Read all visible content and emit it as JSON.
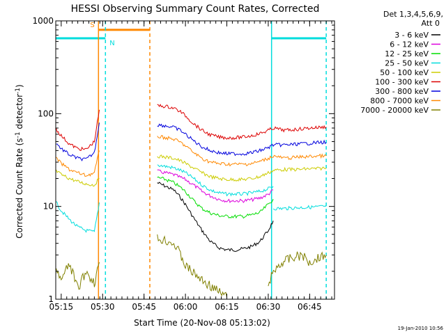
{
  "chart_data": {
    "type": "line",
    "title": "HESSI Observing Summary Count Rates, Corrected",
    "xlabel": "Start Time (20-Nov-08 05:13:02)",
    "ylabel_main": "Corrected Count Rate (s",
    "ylabel_sup1": "-1",
    "ylabel_mid": " detector",
    "ylabel_sup2": "-1",
    "ylabel_end": ")",
    "yscale": "log",
    "xlim": [
      5.217,
      6.9
    ],
    "ylim": [
      1,
      1000
    ],
    "xticks": [
      {
        "x": 5.25,
        "label": "05:15"
      },
      {
        "x": 5.5,
        "label": "05:30"
      },
      {
        "x": 5.75,
        "label": "05:45"
      },
      {
        "x": 6.0,
        "label": "06:00"
      },
      {
        "x": 6.25,
        "label": "06:15"
      },
      {
        "x": 6.5,
        "label": "06:30"
      },
      {
        "x": 6.75,
        "label": "06:45"
      }
    ],
    "yticks": [
      {
        "y": 1,
        "label": "1"
      },
      {
        "y": 10,
        "label": "10"
      },
      {
        "y": 100,
        "label": "100"
      },
      {
        "y": 1000,
        "label": "1000"
      }
    ],
    "legend_header": [
      "Det 1,3,4,5,6,9,",
      "Att 0"
    ],
    "legend_position": "right",
    "series": [
      {
        "name": "3 - 6 keV",
        "color": "#000000",
        "segments": [
          {
            "x": [
              5.83,
              5.88,
              5.93,
              5.97,
              6.0,
              6.05,
              6.1,
              6.15,
              6.2,
              6.25,
              6.3,
              6.35,
              6.4,
              6.45,
              6.5,
              6.53
            ],
            "y": [
              18,
              16.5,
              15,
              12.5,
              10.5,
              7.5,
              5.5,
              4.2,
              3.6,
              3.4,
              3.4,
              3.5,
              3.7,
              4.2,
              5.5,
              7
            ]
          }
        ]
      },
      {
        "name": "6 - 12 keV",
        "color": "#dd00dd",
        "segments": [
          {
            "x": [
              5.83,
              5.88,
              5.93,
              5.97,
              6.0,
              6.05,
              6.1,
              6.15,
              6.2,
              6.25,
              6.3,
              6.35,
              6.4,
              6.45,
              6.5,
              6.53
            ],
            "y": [
              24,
              23,
              22,
              20.5,
              19.5,
              17,
              14.5,
              13,
              12,
              11.5,
              11.5,
              11.5,
              11.8,
              12.3,
              13.5,
              15
            ]
          }
        ]
      },
      {
        "name": "12 - 25 keV",
        "color": "#00dd00",
        "segments": [
          {
            "x": [
              5.83,
              5.88,
              5.93,
              5.97,
              6.0,
              6.05,
              6.1,
              6.15,
              6.2,
              6.25,
              6.3,
              6.35,
              6.4,
              6.45,
              6.5,
              6.53
            ],
            "y": [
              20.5,
              19.5,
              18,
              16,
              14.5,
              11.5,
              9.5,
              8.5,
              8,
              7.8,
              7.8,
              7.8,
              8.1,
              8.6,
              10.5,
              12
            ]
          }
        ]
      },
      {
        "name": "25 - 50 keV",
        "color": "#00dddd",
        "segments": [
          {
            "x": [
              5.22,
              5.25,
              5.3,
              5.35,
              5.4,
              5.45,
              5.48
            ],
            "y": [
              11,
              9,
              7.2,
              6,
              5.5,
              5.3,
              11
            ]
          },
          {
            "x": [
              5.83,
              5.88,
              5.93,
              5.97,
              6.0,
              6.05,
              6.1,
              6.15,
              6.2,
              6.25,
              6.3,
              6.35,
              6.4,
              6.45,
              6.5,
              6.53
            ],
            "y": [
              28,
              27,
              26,
              24.5,
              23,
              20,
              17,
              15,
              14,
              13.6,
              13.6,
              13.6,
              14,
              14.5,
              15.5,
              16.5
            ]
          },
          {
            "x": [
              6.53,
              6.6,
              6.68,
              6.75,
              6.8,
              6.85
            ],
            "y": [
              9.5,
              9.5,
              9.7,
              9.8,
              9.9,
              10
            ]
          }
        ]
      },
      {
        "name": "50 - 100 keV",
        "color": "#cccc00",
        "segments": [
          {
            "x": [
              5.22,
              5.25,
              5.3,
              5.35,
              5.4,
              5.45,
              5.48
            ],
            "y": [
              24,
              22,
              20,
              18.5,
              17.5,
              17,
              20
            ]
          },
          {
            "x": [
              5.83,
              5.88,
              5.93,
              5.97,
              6.0,
              6.05,
              6.1,
              6.15,
              6.2,
              6.25,
              6.3,
              6.35,
              6.4,
              6.45,
              6.5,
              6.53
            ],
            "y": [
              35,
              34,
              33,
              31,
              29,
              26,
              23,
              21,
              20,
              19.5,
              19.5,
              19.5,
              20,
              21,
              23,
              24.5
            ]
          },
          {
            "x": [
              6.53,
              6.6,
              6.68,
              6.75,
              6.8,
              6.85
            ],
            "y": [
              24.5,
              25,
              25,
              25.5,
              25.5,
              26
            ]
          }
        ]
      },
      {
        "name": "100 - 300 keV",
        "color": "#dd0000",
        "segments": [
          {
            "x": [
              5.22,
              5.25,
              5.3,
              5.35,
              5.4,
              5.45,
              5.48
            ],
            "y": [
              68,
              58,
              47,
              42,
              41,
              50,
              110
            ]
          },
          {
            "x": [
              5.83,
              5.88,
              5.93,
              5.97,
              6.0,
              6.05,
              6.1,
              6.15,
              6.2,
              6.25,
              6.3,
              6.35,
              6.4,
              6.45,
              6.5,
              6.53,
              6.6,
              6.68,
              6.75,
              6.8,
              6.85
            ],
            "y": [
              122,
              120,
              115,
              105,
              95,
              78,
              66,
              59,
              56,
              55,
              55,
              56,
              58,
              61,
              66,
              70,
              66,
              68,
              70,
              71,
              72
            ]
          }
        ]
      },
      {
        "name": "300 - 800 keV",
        "color": "#0000dd",
        "segments": [
          {
            "x": [
              5.22,
              5.25,
              5.3,
              5.35,
              5.4,
              5.45,
              5.48
            ],
            "y": [
              48,
              42,
              36,
              33,
              32,
              38,
              80
            ]
          },
          {
            "x": [
              5.83,
              5.88,
              5.93,
              5.97,
              6.0,
              6.05,
              6.1,
              6.15,
              6.2,
              6.25,
              6.3,
              6.35,
              6.4,
              6.45,
              6.5,
              6.53,
              6.6,
              6.68,
              6.75,
              6.8,
              6.85
            ],
            "y": [
              76,
              74,
              71,
              66,
              60,
              51,
              44,
              40,
              38,
              37,
              37,
              37,
              38,
              40,
              43,
              46,
              46,
              47,
              48,
              49,
              49
            ]
          }
        ]
      },
      {
        "name": "800 - 7000 keV",
        "color": "#ff8800",
        "segments": [
          {
            "x": [
              5.22,
              5.25,
              5.3,
              5.35,
              5.4,
              5.45,
              5.48
            ],
            "y": [
              33,
              29,
              25,
              23,
              21.5,
              23,
              40
            ]
          },
          {
            "x": [
              5.83,
              5.88,
              5.93,
              5.97,
              6.0,
              6.05,
              6.1,
              6.15,
              6.2,
              6.25,
              6.3,
              6.35,
              6.4,
              6.45,
              6.5,
              6.53,
              6.6,
              6.68,
              6.75,
              6.8,
              6.85
            ],
            "y": [
              57,
              55,
              53,
              49,
              45,
              38,
              33,
              30,
              29,
              28.5,
              28.5,
              28.5,
              29,
              30.5,
              33,
              35,
              33,
              34,
              34.5,
              35,
              35
            ]
          }
        ]
      },
      {
        "name": "7000 - 20000 keV",
        "color": "#808000",
        "segments": [
          {
            "x": [
              5.22,
              5.25,
              5.3,
              5.35,
              5.4,
              5.45,
              5.48
            ],
            "y": [
              2,
              1.6,
              2.4,
              1.3,
              2,
              1.5,
              2.5
            ]
          },
          {
            "x": [
              5.83,
              5.88,
              5.93,
              5.97,
              6.0,
              6.05,
              6.1,
              6.15,
              6.2,
              6.25
            ],
            "y": [
              4.5,
              4.3,
              4,
              3,
              2.3,
              1.9,
              1.6,
              1.4,
              1.2,
              1.05
            ]
          },
          {
            "x": [
              6.5,
              6.55,
              6.6,
              6.65,
              6.7,
              6.75,
              6.8,
              6.85
            ],
            "y": [
              1.5,
              2.2,
              2.6,
              2.8,
              3,
              2.5,
              2.8,
              3
            ]
          }
        ]
      }
    ],
    "flags": {
      "saa": {
        "label": "S",
        "color": "#ff8800",
        "x_start": 5.475,
        "x_end": 5.785,
        "y": 800
      },
      "night": {
        "label": "N",
        "color": "#00dddd",
        "segments": [
          {
            "x": [
              5.217,
              5.517
            ],
            "y": 650
          },
          {
            "x": [
              6.52,
              6.85
            ],
            "y": 650
          }
        ]
      },
      "vlines": [
        {
          "x": 5.475,
          "color": "#ff8800",
          "style": "solid"
        },
        {
          "x": 5.517,
          "color": "#00dddd",
          "style": "dashed"
        },
        {
          "x": 5.785,
          "color": "#ff8800",
          "style": "dashed"
        },
        {
          "x": 6.52,
          "color": "#00dddd",
          "style": "solid"
        },
        {
          "x": 6.85,
          "color": "#00dddd",
          "style": "dashed"
        }
      ]
    },
    "timestamp": "19-Jan-2010 10:56"
  }
}
